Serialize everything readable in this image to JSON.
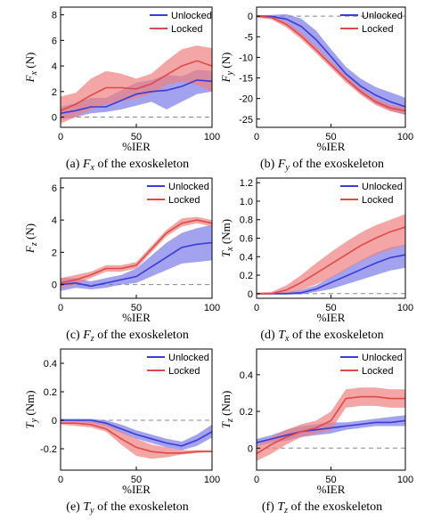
{
  "colors": {
    "unlocked": "#3b3bd6",
    "locked": "#e04848",
    "unlocked_band": "#7a7ae8",
    "locked_band": "#f08080",
    "zero_line": "#888888"
  },
  "chart_data": [
    {
      "type": "line",
      "id": "a",
      "caption_prefix": "(a) ",
      "caption_sym": "F",
      "caption_sub": "x",
      "caption_suffix": " of the exoskeleton",
      "ylabel_sym": "F",
      "ylabel_sub": "x",
      "ylabel_unit": " (N)",
      "xlabel": "%IER",
      "xlim": [
        0,
        100
      ],
      "ylim": [
        -0.8,
        8.6
      ],
      "xticks": [
        0,
        50,
        100
      ],
      "yticks": [
        0,
        2,
        4,
        6,
        8
      ],
      "legend": "top-center",
      "series": [
        {
          "name": "Unlocked",
          "key": "unlocked",
          "x": [
            0,
            10,
            20,
            30,
            40,
            50,
            60,
            70,
            80,
            90,
            100
          ],
          "y": [
            0.3,
            0.5,
            0.8,
            0.8,
            1.3,
            1.8,
            2.0,
            2.1,
            2.4,
            2.9,
            2.8
          ],
          "lo": [
            -0.2,
            0.0,
            0.3,
            0.4,
            0.6,
            0.9,
            1.2,
            0.6,
            1.2,
            1.8,
            2.0
          ],
          "hi": [
            0.8,
            1.1,
            1.5,
            1.5,
            2.1,
            2.7,
            2.9,
            3.3,
            3.2,
            3.7,
            3.6
          ]
        },
        {
          "name": "Locked",
          "key": "locked",
          "x": [
            0,
            10,
            20,
            30,
            40,
            50,
            60,
            70,
            80,
            90,
            100
          ],
          "y": [
            0.5,
            1.0,
            1.7,
            2.3,
            2.3,
            2.2,
            2.6,
            3.3,
            4.0,
            4.4,
            4.0
          ],
          "lo": [
            -0.5,
            0.0,
            0.6,
            1.0,
            1.2,
            1.5,
            1.8,
            2.5,
            2.8,
            2.5,
            2.0
          ],
          "hi": [
            1.6,
            1.9,
            3.0,
            3.6,
            3.4,
            3.0,
            3.4,
            4.4,
            5.3,
            5.6,
            5.4
          ]
        }
      ]
    },
    {
      "type": "line",
      "id": "b",
      "caption_prefix": "(b) ",
      "caption_sym": "F",
      "caption_sub": "y",
      "caption_suffix": " of the exoskeleton",
      "ylabel_sym": "F",
      "ylabel_sub": "y",
      "ylabel_unit": " (N)",
      "xlabel": "%IER",
      "xlim": [
        0,
        100
      ],
      "ylim": [
        -27,
        2.2
      ],
      "xticks": [
        0,
        50,
        100
      ],
      "yticks": [
        0,
        -5,
        -10,
        -15,
        -20,
        -25
      ],
      "legend": "top-right",
      "series": [
        {
          "name": "Unlocked",
          "key": "unlocked",
          "x": [
            0,
            10,
            20,
            30,
            40,
            50,
            60,
            70,
            80,
            90,
            100
          ],
          "y": [
            0,
            -0.1,
            -0.7,
            -2.5,
            -5.7,
            -9.8,
            -14.0,
            -17.0,
            -19.2,
            -20.8,
            -22.0
          ],
          "lo": [
            -0.2,
            -0.6,
            -2.0,
            -4.5,
            -7.8,
            -11.5,
            -15.5,
            -18.8,
            -21.3,
            -23.0,
            -24.0
          ],
          "hi": [
            0.2,
            0.3,
            0.5,
            -0.6,
            -3.5,
            -8.0,
            -12.3,
            -15.2,
            -17.2,
            -18.5,
            -19.8
          ]
        },
        {
          "name": "Locked",
          "key": "locked",
          "x": [
            0,
            10,
            20,
            30,
            40,
            50,
            60,
            70,
            80,
            90,
            100
          ],
          "y": [
            0,
            -0.3,
            -2.0,
            -4.8,
            -8.2,
            -11.8,
            -15.3,
            -18.3,
            -20.8,
            -22.3,
            -23.0
          ],
          "lo": [
            -0.3,
            -0.8,
            -2.7,
            -5.6,
            -9.0,
            -12.6,
            -16.1,
            -19.1,
            -21.6,
            -23.1,
            -23.8
          ],
          "hi": [
            0.3,
            0.2,
            -1.3,
            -4.0,
            -7.4,
            -11.0,
            -14.5,
            -17.5,
            -20.0,
            -21.5,
            -22.2
          ]
        }
      ]
    },
    {
      "type": "line",
      "id": "c",
      "caption_prefix": "(c) ",
      "caption_sym": "F",
      "caption_sub": "z",
      "caption_suffix": " of the exoskeleton",
      "ylabel_sym": "F",
      "ylabel_sub": "z",
      "ylabel_unit": " (N)",
      "xlabel": "%IER",
      "xlim": [
        0,
        100
      ],
      "ylim": [
        -0.85,
        6.6
      ],
      "xticks": [
        0,
        50,
        100
      ],
      "yticks": [
        0,
        2,
        4,
        6
      ],
      "legend": "top-right",
      "series": [
        {
          "name": "Unlocked",
          "key": "unlocked",
          "x": [
            0,
            10,
            20,
            30,
            40,
            50,
            60,
            70,
            80,
            90,
            100
          ],
          "y": [
            0.0,
            0.1,
            -0.1,
            0.1,
            0.3,
            0.5,
            1.1,
            1.7,
            2.3,
            2.5,
            2.6
          ],
          "lo": [
            -0.4,
            -0.2,
            -0.3,
            -0.2,
            0.0,
            0.1,
            0.5,
            0.9,
            1.3,
            1.4,
            1.5
          ],
          "hi": [
            0.4,
            0.4,
            0.2,
            0.4,
            0.6,
            1.0,
            1.8,
            2.6,
            3.2,
            3.5,
            3.7
          ]
        },
        {
          "name": "Locked",
          "key": "locked",
          "x": [
            0,
            10,
            20,
            30,
            40,
            50,
            60,
            70,
            80,
            90,
            100
          ],
          "y": [
            0.1,
            0.3,
            0.6,
            1.0,
            1.0,
            1.2,
            2.2,
            3.2,
            3.8,
            4.0,
            3.8
          ],
          "lo": [
            -0.2,
            0.0,
            0.4,
            0.8,
            0.8,
            1.0,
            2.0,
            3.0,
            3.6,
            3.8,
            3.6
          ],
          "hi": [
            0.4,
            0.6,
            0.8,
            1.2,
            1.2,
            1.4,
            2.4,
            3.4,
            4.1,
            4.2,
            4.0
          ]
        }
      ]
    },
    {
      "type": "line",
      "id": "d",
      "caption_prefix": "(d) ",
      "caption_sym": "T",
      "caption_sub": "x",
      "caption_suffix": " of the exoskeleton",
      "ylabel_sym": "T",
      "ylabel_sub": "x",
      "ylabel_unit": " (Nm)",
      "xlabel": "%IER",
      "xlim": [
        0,
        100
      ],
      "ylim": [
        -0.05,
        1.25
      ],
      "xticks": [
        0,
        50,
        100
      ],
      "yticks": [
        0,
        0.2,
        0.4,
        0.6,
        0.8,
        1.0,
        1.2
      ],
      "ytick_labels": [
        "0",
        "0.2",
        "0.4",
        "0.6",
        "0.8",
        "1.0",
        "1.2"
      ],
      "legend": "top-right",
      "series": [
        {
          "name": "Unlocked",
          "key": "unlocked",
          "x": [
            0,
            10,
            20,
            30,
            40,
            50,
            60,
            70,
            80,
            90,
            100
          ],
          "y": [
            0,
            0,
            0,
            0.01,
            0.05,
            0.12,
            0.19,
            0.26,
            0.33,
            0.39,
            0.42
          ],
          "lo": [
            -0.01,
            -0.01,
            -0.01,
            -0.01,
            0.02,
            0.05,
            0.1,
            0.15,
            0.2,
            0.25,
            0.28
          ],
          "hi": [
            0.01,
            0.01,
            0.02,
            0.04,
            0.09,
            0.18,
            0.27,
            0.36,
            0.44,
            0.5,
            0.53
          ]
        },
        {
          "name": "Locked",
          "key": "locked",
          "x": [
            0,
            10,
            20,
            30,
            40,
            50,
            60,
            70,
            80,
            90,
            100
          ],
          "y": [
            0,
            0,
            0.04,
            0.12,
            0.22,
            0.32,
            0.42,
            0.52,
            0.6,
            0.67,
            0.72
          ],
          "lo": [
            -0.01,
            -0.01,
            0.0,
            0.04,
            0.1,
            0.17,
            0.26,
            0.35,
            0.42,
            0.48,
            0.52
          ],
          "hi": [
            0.01,
            0.02,
            0.09,
            0.2,
            0.33,
            0.45,
            0.56,
            0.66,
            0.74,
            0.8,
            0.86
          ]
        }
      ]
    },
    {
      "type": "line",
      "id": "e",
      "caption_prefix": "(e) ",
      "caption_sym": "T",
      "caption_sub": "y",
      "caption_suffix": " of the exoskeleton",
      "ylabel_sym": "T",
      "ylabel_sub": "y",
      "ylabel_unit": " (Nm)",
      "xlabel": "%IER",
      "xlim": [
        0,
        100
      ],
      "ylim": [
        -0.35,
        0.5
      ],
      "xticks": [
        0,
        50,
        100
      ],
      "yticks": [
        -0.2,
        0,
        0.2,
        0.4
      ],
      "ytick_labels": [
        "-0.2",
        "0",
        "0.2",
        "0.4"
      ],
      "legend": "top-right",
      "series": [
        {
          "name": "Unlocked",
          "key": "unlocked",
          "x": [
            0,
            10,
            20,
            30,
            40,
            50,
            60,
            70,
            80,
            90,
            100
          ],
          "y": [
            0,
            0,
            0,
            -0.02,
            -0.06,
            -0.1,
            -0.13,
            -0.16,
            -0.18,
            -0.14,
            -0.08
          ],
          "lo": [
            -0.01,
            -0.01,
            -0.02,
            -0.04,
            -0.09,
            -0.13,
            -0.16,
            -0.19,
            -0.21,
            -0.18,
            -0.12
          ],
          "hi": [
            0.01,
            0.01,
            0.01,
            0.0,
            -0.03,
            -0.07,
            -0.1,
            -0.13,
            -0.15,
            -0.1,
            -0.03
          ]
        },
        {
          "name": "Locked",
          "key": "locked",
          "x": [
            0,
            10,
            20,
            30,
            40,
            50,
            60,
            70,
            80,
            90,
            100
          ],
          "y": [
            -0.02,
            -0.02,
            -0.03,
            -0.06,
            -0.13,
            -0.19,
            -0.22,
            -0.23,
            -0.23,
            -0.22,
            -0.22
          ],
          "lo": [
            -0.03,
            -0.04,
            -0.05,
            -0.08,
            -0.17,
            -0.25,
            -0.27,
            -0.26,
            -0.24,
            -0.23,
            -0.22
          ],
          "hi": [
            -0.01,
            -0.01,
            -0.01,
            -0.03,
            -0.08,
            -0.13,
            -0.17,
            -0.19,
            -0.21,
            -0.21,
            -0.21
          ]
        }
      ]
    },
    {
      "type": "line",
      "id": "f",
      "caption_prefix": "(f) ",
      "caption_sym": "T",
      "caption_sub": "z",
      "caption_suffix": " of the exoskeleton",
      "ylabel_sym": "T",
      "ylabel_sub": "z",
      "ylabel_unit": " (Nm)",
      "xlabel": "%IER",
      "xlim": [
        0,
        100
      ],
      "ylim": [
        -0.12,
        0.54
      ],
      "xticks": [
        0,
        50,
        100
      ],
      "yticks": [
        0,
        0.2,
        0.4
      ],
      "ytick_labels": [
        "0",
        "0.2",
        "0.4"
      ],
      "legend": "top-right",
      "series": [
        {
          "name": "Unlocked",
          "key": "unlocked",
          "x": [
            0,
            10,
            20,
            30,
            40,
            50,
            60,
            70,
            80,
            90,
            100
          ],
          "y": [
            0.03,
            0.05,
            0.07,
            0.09,
            0.1,
            0.11,
            0.12,
            0.13,
            0.14,
            0.14,
            0.15
          ],
          "lo": [
            0.01,
            0.03,
            0.04,
            0.06,
            0.07,
            0.08,
            0.1,
            0.11,
            0.12,
            0.12,
            0.12
          ],
          "hi": [
            0.05,
            0.07,
            0.1,
            0.12,
            0.13,
            0.14,
            0.14,
            0.15,
            0.16,
            0.17,
            0.18
          ]
        },
        {
          "name": "Locked",
          "key": "locked",
          "x": [
            0,
            10,
            20,
            30,
            40,
            50,
            60,
            70,
            80,
            90,
            100
          ],
          "y": [
            -0.03,
            0.02,
            0.06,
            0.09,
            0.11,
            0.15,
            0.27,
            0.28,
            0.28,
            0.27,
            0.27
          ],
          "lo": [
            -0.07,
            -0.03,
            0.02,
            0.06,
            0.08,
            0.1,
            0.22,
            0.23,
            0.23,
            0.22,
            0.22
          ],
          "hi": [
            0.01,
            0.06,
            0.1,
            0.13,
            0.15,
            0.2,
            0.32,
            0.33,
            0.33,
            0.32,
            0.32
          ]
        }
      ]
    }
  ]
}
